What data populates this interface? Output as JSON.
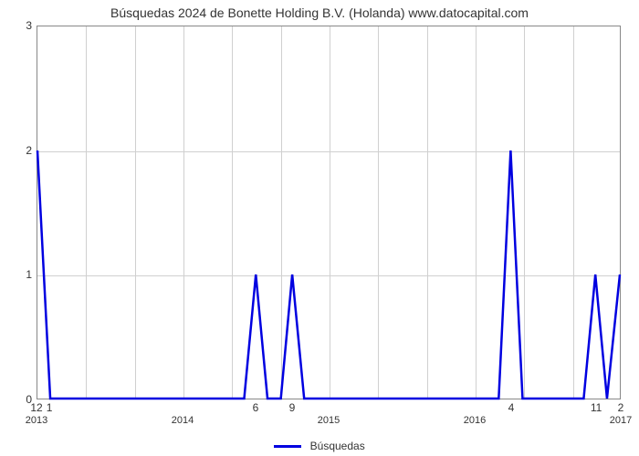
{
  "chart": {
    "type": "line",
    "title": "Búsquedas 2024 de Bonette Holding B.V. (Holanda) www.datocapital.com",
    "title_fontsize": 14,
    "background_color": "#ffffff",
    "grid_color": "#d0d0d0",
    "border_color": "#888888",
    "line_color": "#0000e0",
    "line_width": 2.5,
    "ylim": [
      0,
      3
    ],
    "yticks": [
      0,
      1,
      2,
      3
    ],
    "x_year_ticks": [
      {
        "label": "2013",
        "pos": 0.0
      },
      {
        "label": "2014",
        "pos": 0.25
      },
      {
        "label": "2015",
        "pos": 0.5
      },
      {
        "label": "2016",
        "pos": 0.75
      },
      {
        "label": "2017",
        "pos": 1.0
      }
    ],
    "x_sub_ticks": [
      {
        "label": "12",
        "pos": 0.0
      },
      {
        "label": "1",
        "pos": 0.022
      },
      {
        "label": "6",
        "pos": 0.375
      },
      {
        "label": "9",
        "pos": 0.4375
      },
      {
        "label": "4",
        "pos": 0.8125
      },
      {
        "label": "11",
        "pos": 0.958
      },
      {
        "label": "2",
        "pos": 1.0
      }
    ],
    "grid_v_positions": [
      0.0833,
      0.1667,
      0.25,
      0.3333,
      0.4167,
      0.5,
      0.5833,
      0.6667,
      0.75,
      0.8333,
      0.9167
    ],
    "series": {
      "name": "Búsquedas",
      "points": [
        {
          "x": 0.0,
          "y": 2.0
        },
        {
          "x": 0.022,
          "y": 0.0
        },
        {
          "x": 0.355,
          "y": 0.0
        },
        {
          "x": 0.375,
          "y": 1.0
        },
        {
          "x": 0.395,
          "y": 0.0
        },
        {
          "x": 0.418,
          "y": 0.0
        },
        {
          "x": 0.4375,
          "y": 1.0
        },
        {
          "x": 0.458,
          "y": 0.0
        },
        {
          "x": 0.792,
          "y": 0.0
        },
        {
          "x": 0.8125,
          "y": 2.0
        },
        {
          "x": 0.833,
          "y": 0.0
        },
        {
          "x": 0.938,
          "y": 0.0
        },
        {
          "x": 0.958,
          "y": 1.0
        },
        {
          "x": 0.978,
          "y": 0.0
        },
        {
          "x": 1.0,
          "y": 1.0
        }
      ]
    },
    "legend_label": "Búsquedas"
  }
}
